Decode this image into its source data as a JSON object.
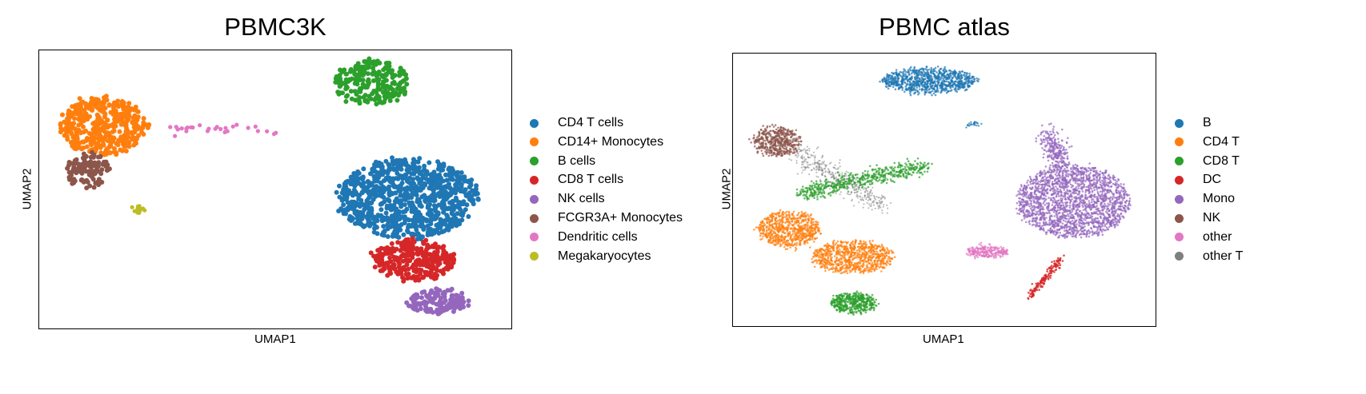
{
  "chart_data": [
    {
      "type": "scatter",
      "title": "PBMC3K",
      "xlabel": "UMAP1",
      "ylabel": "UMAP2",
      "grid": false,
      "legend_position": "right",
      "series": [
        {
          "name": "CD4 T cells",
          "color": "#1f77b4"
        },
        {
          "name": "CD14+ Monocytes",
          "color": "#ff7f0e"
        },
        {
          "name": "B cells",
          "color": "#2ca02c"
        },
        {
          "name": "CD8 T cells",
          "color": "#d62728"
        },
        {
          "name": "NK cells",
          "color": "#9467bd"
        },
        {
          "name": "FCGR3A+ Monocytes",
          "color": "#8c564b"
        },
        {
          "name": "Dendritic cells",
          "color": "#e377c2"
        },
        {
          "name": "Megakaryocytes",
          "color": "#bcbd22"
        }
      ]
    },
    {
      "type": "scatter",
      "title": "PBMC atlas",
      "xlabel": "UMAP1",
      "ylabel": "UMAP2",
      "grid": false,
      "legend_position": "right",
      "series": [
        {
          "name": "B",
          "color": "#1f77b4"
        },
        {
          "name": "CD4 T",
          "color": "#ff7f0e"
        },
        {
          "name": "CD8 T",
          "color": "#2ca02c"
        },
        {
          "name": "DC",
          "color": "#d62728"
        },
        {
          "name": "Mono",
          "color": "#9467bd"
        },
        {
          "name": "NK",
          "color": "#8c564b"
        },
        {
          "name": "other",
          "color": "#e377c2"
        },
        {
          "name": "other T",
          "color": "#7f7f7f"
        }
      ]
    }
  ]
}
